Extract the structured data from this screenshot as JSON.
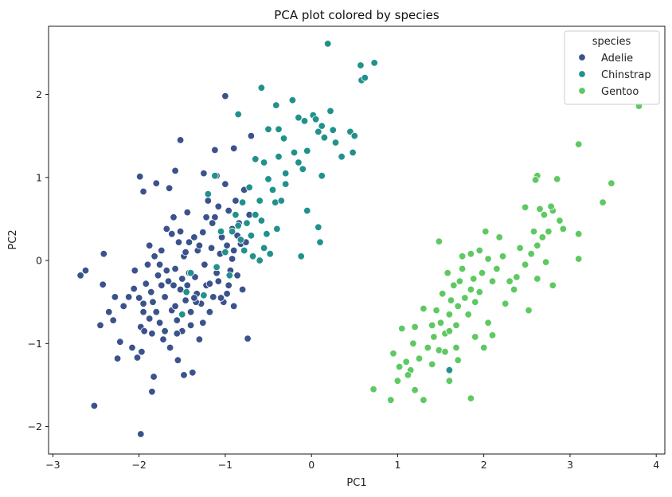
{
  "chart_data": {
    "type": "scatter",
    "title": "PCA plot colored by species",
    "xlabel": "PC1",
    "ylabel": "PC2",
    "xlim": [
      -3.05,
      4.1
    ],
    "ylim": [
      -2.33,
      2.82
    ],
    "xticks": [
      {
        "value": -3,
        "label": "−3"
      },
      {
        "value": -2,
        "label": "−2"
      },
      {
        "value": -1,
        "label": "−1"
      },
      {
        "value": 0,
        "label": "0"
      },
      {
        "value": 1,
        "label": "1"
      },
      {
        "value": 2,
        "label": "2"
      },
      {
        "value": 3,
        "label": "3"
      },
      {
        "value": 4,
        "label": "4"
      }
    ],
    "yticks": [
      {
        "value": -2,
        "label": "−2"
      },
      {
        "value": -1,
        "label": "−1"
      },
      {
        "value": 0,
        "label": "0"
      },
      {
        "value": 1,
        "label": "1"
      },
      {
        "value": 2,
        "label": "2"
      }
    ],
    "grid": false,
    "legend": {
      "title": "species",
      "position": "top-right"
    },
    "series": [
      {
        "name": "Adelie",
        "color": "#3b528b",
        "points": [
          [
            -2.68,
            -0.18
          ],
          [
            -2.62,
            -0.12
          ],
          [
            -2.52,
            -1.75
          ],
          [
            -2.45,
            -0.78
          ],
          [
            -2.42,
            -0.29
          ],
          [
            -2.41,
            0.08
          ],
          [
            -2.35,
            -0.62
          ],
          [
            -2.28,
            -0.44
          ],
          [
            -2.25,
            -1.18
          ],
          [
            -2.22,
            -0.98
          ],
          [
            -2.12,
            -0.44
          ],
          [
            -2.08,
            -1.05
          ],
          [
            -2.06,
            -0.34
          ],
          [
            -2.05,
            -0.12
          ],
          [
            -2.02,
            -1.17
          ],
          [
            -1.98,
            -0.8
          ],
          [
            -1.97,
            -1.1
          ],
          [
            -1.95,
            -0.52
          ],
          [
            -1.92,
            -0.28
          ],
          [
            -1.9,
            -0.05
          ],
          [
            -1.88,
            0.18
          ],
          [
            -1.86,
            -0.38
          ],
          [
            -1.85,
            -0.88
          ],
          [
            -1.83,
            -1.4
          ],
          [
            -1.82,
            0.05
          ],
          [
            -1.8,
            -0.62
          ],
          [
            -1.78,
            -0.18
          ],
          [
            -1.76,
            -0.75
          ],
          [
            -1.74,
            0.12
          ],
          [
            -1.72,
            -0.95
          ],
          [
            -1.7,
            -0.44
          ],
          [
            -1.68,
            0.38
          ],
          [
            -1.66,
            -0.25
          ],
          [
            -1.64,
            -1.05
          ],
          [
            -1.62,
            -0.6
          ],
          [
            -1.6,
            0.52
          ],
          [
            -1.58,
            -0.1
          ],
          [
            -1.56,
            -0.72
          ],
          [
            -1.54,
            0.22
          ],
          [
            -1.52,
            -0.35
          ],
          [
            -1.5,
            -0.85
          ],
          [
            -1.48,
            0.05
          ],
          [
            -1.46,
            -0.48
          ],
          [
            -1.44,
            0.58
          ],
          [
            -1.42,
            -0.15
          ],
          [
            -1.4,
            -0.62
          ],
          [
            -1.38,
            -1.35
          ],
          [
            -1.36,
            0.28
          ],
          [
            -1.35,
            -0.2
          ],
          [
            -1.33,
            -0.4
          ],
          [
            -1.32,
            0.12
          ],
          [
            -1.3,
            -0.95
          ],
          [
            -1.28,
            -0.52
          ],
          [
            -1.26,
            0.34
          ],
          [
            -1.24,
            -0.05
          ],
          [
            -1.22,
            -0.3
          ],
          [
            -1.2,
            0.72
          ],
          [
            -1.18,
            -0.62
          ],
          [
            -1.16,
            0.15
          ],
          [
            -1.14,
            -0.44
          ],
          [
            -1.12,
            0.52
          ],
          [
            -1.1,
            1.02
          ],
          [
            -1.08,
            -0.25
          ],
          [
            -1.06,
            0.08
          ],
          [
            -1.04,
            0.28
          ],
          [
            -1.02,
            -0.5
          ],
          [
            -1.0,
            0.92
          ],
          [
            -0.98,
            -0.4
          ],
          [
            -0.96,
            0.6
          ],
          [
            -0.94,
            -0.12
          ],
          [
            -0.92,
            0.38
          ],
          [
            -0.9,
            0.12
          ],
          [
            -0.88,
            0.72
          ],
          [
            -0.86,
            -0.18
          ],
          [
            -0.84,
            0.45
          ],
          [
            -0.82,
            0.2
          ],
          [
            -0.8,
            -0.35
          ],
          [
            -0.78,
            0.85
          ],
          [
            -0.76,
            0.22
          ],
          [
            -0.74,
            -0.94
          ],
          [
            -0.72,
            0.55
          ],
          [
            -0.7,
            1.5
          ],
          [
            -1.99,
            1.01
          ],
          [
            -1.95,
            0.83
          ],
          [
            -1.8,
            0.93
          ],
          [
            -1.65,
            0.87
          ],
          [
            -1.58,
            1.08
          ],
          [
            -1.52,
            1.45
          ],
          [
            -1.25,
            1.05
          ],
          [
            -1.12,
            1.33
          ],
          [
            -1.0,
            1.98
          ],
          [
            -0.9,
            1.35
          ],
          [
            -1.85,
            -1.58
          ],
          [
            -1.98,
            -2.09
          ],
          [
            -1.55,
            -1.2
          ],
          [
            -1.48,
            -1.38
          ],
          [
            -2.18,
            -0.55
          ],
          [
            -2.3,
            -0.72
          ],
          [
            -1.95,
            -0.62
          ],
          [
            -1.88,
            -0.7
          ],
          [
            -1.74,
            -0.3
          ],
          [
            -1.68,
            -0.12
          ],
          [
            -1.6,
            -0.3
          ],
          [
            -1.56,
            -0.88
          ],
          [
            -1.5,
            -0.22
          ],
          [
            -1.44,
            -0.3
          ],
          [
            -1.4,
            -0.78
          ],
          [
            -1.34,
            -0.5
          ],
          [
            -1.26,
            -0.75
          ],
          [
            -1.18,
            -0.28
          ],
          [
            -1.1,
            -0.15
          ],
          [
            -1.05,
            -0.45
          ],
          [
            -0.96,
            -0.3
          ],
          [
            -0.9,
            -0.55
          ],
          [
            -2.0,
            -0.45
          ],
          [
            -1.94,
            -0.85
          ],
          [
            -1.84,
            -0.5
          ],
          [
            -1.76,
            -0.05
          ],
          [
            -1.7,
            -0.85
          ],
          [
            -1.62,
            0.32
          ],
          [
            -1.58,
            -0.55
          ],
          [
            -1.52,
            0.35
          ],
          [
            -1.46,
            0.1
          ],
          [
            -1.42,
            0.22
          ],
          [
            -1.36,
            -0.45
          ],
          [
            -1.3,
            0.18
          ],
          [
            -1.22,
            0.52
          ],
          [
            -1.15,
            0.45
          ],
          [
            -1.08,
            0.65
          ],
          [
            -0.98,
            0.18
          ],
          [
            -0.92,
            0.02
          ],
          [
            -0.86,
            0.3
          ]
        ]
      },
      {
        "name": "Chinstrap",
        "color": "#21918c",
        "points": [
          [
            0.19,
            2.61
          ],
          [
            0.57,
            2.35
          ],
          [
            0.58,
            2.17
          ],
          [
            0.62,
            2.2
          ],
          [
            0.73,
            2.38
          ],
          [
            -0.58,
            2.08
          ],
          [
            -0.41,
            1.87
          ],
          [
            -0.22,
            1.93
          ],
          [
            -0.85,
            1.76
          ],
          [
            -0.5,
            1.58
          ],
          [
            -0.38,
            1.58
          ],
          [
            -0.32,
            1.47
          ],
          [
            -0.15,
            1.72
          ],
          [
            -0.08,
            1.68
          ],
          [
            0.02,
            1.75
          ],
          [
            0.05,
            1.7
          ],
          [
            0.08,
            1.55
          ],
          [
            0.12,
            1.62
          ],
          [
            0.15,
            1.48
          ],
          [
            0.22,
            1.8
          ],
          [
            0.25,
            1.57
          ],
          [
            0.28,
            1.42
          ],
          [
            0.35,
            1.25
          ],
          [
            0.45,
            1.55
          ],
          [
            0.5,
            1.5
          ],
          [
            0.48,
            1.3
          ],
          [
            -0.2,
            1.3
          ],
          [
            -0.15,
            1.18
          ],
          [
            -0.1,
            1.1
          ],
          [
            -0.05,
            1.32
          ],
          [
            -0.38,
            1.25
          ],
          [
            -0.3,
            1.05
          ],
          [
            -0.5,
            0.98
          ],
          [
            -0.45,
            0.85
          ],
          [
            -0.42,
            0.7
          ],
          [
            -0.6,
            0.72
          ],
          [
            -0.65,
            1.22
          ],
          [
            -0.55,
            1.18
          ],
          [
            -0.72,
            0.88
          ],
          [
            -0.8,
            0.7
          ],
          [
            -0.88,
            0.55
          ],
          [
            -0.75,
            0.45
          ],
          [
            -0.7,
            0.3
          ],
          [
            -0.78,
            0.12
          ],
          [
            -0.68,
            0.05
          ],
          [
            -0.6,
            0.0
          ],
          [
            -0.55,
            0.15
          ],
          [
            -0.48,
            0.08
          ],
          [
            -0.4,
            0.38
          ],
          [
            -0.35,
            0.72
          ],
          [
            -0.3,
            0.92
          ],
          [
            -0.05,
            0.6
          ],
          [
            0.08,
            0.4
          ],
          [
            0.1,
            0.22
          ],
          [
            0.12,
            1.02
          ],
          [
            -0.12,
            0.05
          ],
          [
            -0.95,
            -0.18
          ],
          [
            -1.05,
            0.35
          ],
          [
            -1.1,
            -0.08
          ],
          [
            -1.0,
            0.1
          ],
          [
            -1.2,
            0.8
          ],
          [
            -1.25,
            -0.42
          ],
          [
            -1.45,
            -0.38
          ],
          [
            -1.5,
            -0.65
          ],
          [
            -1.4,
            -0.15
          ],
          [
            -1.12,
            1.02
          ],
          [
            -0.92,
            0.35
          ],
          [
            -0.85,
            0.42
          ],
          [
            -0.82,
            0.25
          ],
          [
            -0.65,
            0.55
          ],
          [
            -0.58,
            0.48
          ],
          [
            -0.52,
            0.32
          ],
          [
            1.6,
            -1.32
          ]
        ]
      },
      {
        "name": "Gentoo",
        "color": "#5ec962",
        "points": [
          [
            3.8,
            1.86
          ],
          [
            3.1,
            1.4
          ],
          [
            3.48,
            0.93
          ],
          [
            3.38,
            0.7
          ],
          [
            2.62,
            1.02
          ],
          [
            2.6,
            0.97
          ],
          [
            2.85,
            0.98
          ],
          [
            2.8,
            0.6
          ],
          [
            2.78,
            0.65
          ],
          [
            2.7,
            0.55
          ],
          [
            2.88,
            0.48
          ],
          [
            2.92,
            0.38
          ],
          [
            3.1,
            0.32
          ],
          [
            3.1,
            0.02
          ],
          [
            2.75,
            0.35
          ],
          [
            2.68,
            0.28
          ],
          [
            2.62,
            0.18
          ],
          [
            2.58,
            0.35
          ],
          [
            2.55,
            0.08
          ],
          [
            2.48,
            -0.05
          ],
          [
            2.42,
            0.15
          ],
          [
            2.38,
            -0.2
          ],
          [
            2.3,
            -0.25
          ],
          [
            2.22,
            0.05
          ],
          [
            2.18,
            0.28
          ],
          [
            2.15,
            -0.1
          ],
          [
            2.1,
            -0.25
          ],
          [
            2.05,
            0.02
          ],
          [
            2.02,
            0.35
          ],
          [
            1.98,
            -0.15
          ],
          [
            1.95,
            -0.38
          ],
          [
            1.9,
            -0.5
          ],
          [
            1.88,
            -0.22
          ],
          [
            1.85,
            -0.35
          ],
          [
            1.82,
            -0.65
          ],
          [
            1.78,
            -0.45
          ],
          [
            1.75,
            0.05
          ],
          [
            1.72,
            -0.25
          ],
          [
            1.7,
            -0.55
          ],
          [
            1.68,
            -0.78
          ],
          [
            1.65,
            -0.3
          ],
          [
            1.62,
            -0.48
          ],
          [
            1.6,
            -0.65
          ],
          [
            1.58,
            -0.15
          ],
          [
            1.55,
            -0.88
          ],
          [
            1.52,
            -0.4
          ],
          [
            1.5,
            -0.75
          ],
          [
            1.48,
            -1.08
          ],
          [
            1.45,
            -0.6
          ],
          [
            1.42,
            -0.92
          ],
          [
            1.4,
            -0.78
          ],
          [
            1.35,
            -1.05
          ],
          [
            1.3,
            -0.58
          ],
          [
            1.25,
            -1.18
          ],
          [
            1.2,
            -0.8
          ],
          [
            1.18,
            -1.0
          ],
          [
            1.15,
            -1.32
          ],
          [
            1.12,
            -1.38
          ],
          [
            1.1,
            -1.22
          ],
          [
            1.05,
            -0.82
          ],
          [
            1.02,
            -1.28
          ],
          [
            1.0,
            -1.45
          ],
          [
            0.95,
            -1.12
          ],
          [
            0.92,
            -1.68
          ],
          [
            0.72,
            -1.55
          ],
          [
            1.48,
            0.23
          ],
          [
            1.85,
            -1.66
          ],
          [
            1.6,
            -1.45
          ],
          [
            1.3,
            -1.68
          ],
          [
            1.2,
            -1.56
          ],
          [
            1.7,
            -1.2
          ],
          [
            2.0,
            -1.05
          ],
          [
            2.1,
            -0.9
          ],
          [
            2.25,
            -0.52
          ],
          [
            2.35,
            -0.35
          ],
          [
            2.48,
            0.64
          ],
          [
            2.65,
            0.62
          ],
          [
            2.72,
            -0.02
          ],
          [
            2.8,
            -0.3
          ],
          [
            2.52,
            -0.6
          ],
          [
            2.62,
            -0.22
          ],
          [
            1.95,
            0.12
          ],
          [
            1.85,
            0.08
          ],
          [
            1.75,
            -0.1
          ],
          [
            1.68,
            -1.05
          ],
          [
            1.55,
            -1.1
          ],
          [
            1.9,
            -0.92
          ],
          [
            2.05,
            -0.75
          ],
          [
            1.6,
            -0.85
          ],
          [
            1.4,
            -1.25
          ]
        ]
      }
    ]
  }
}
